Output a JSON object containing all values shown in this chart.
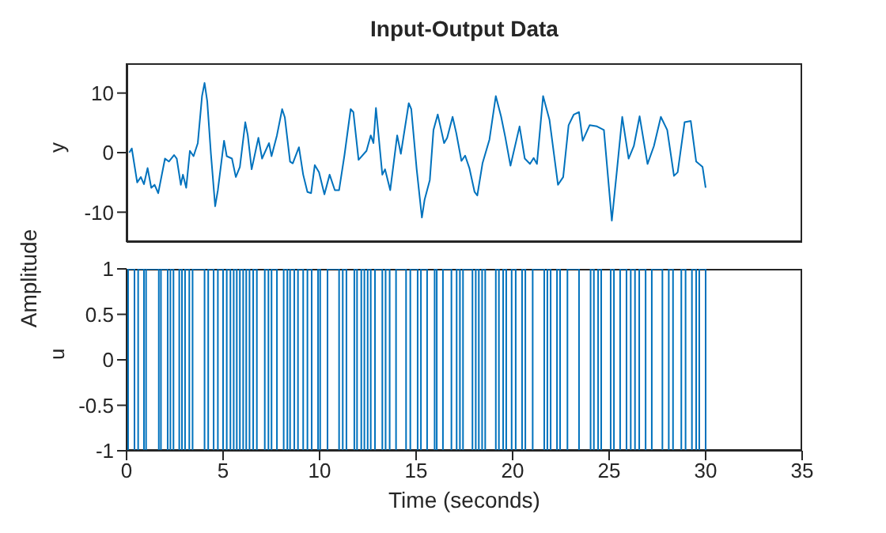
{
  "chart_data": [
    {
      "type": "line",
      "title": "Input-Output Data",
      "ylabel": "y",
      "xlim": [
        0,
        35
      ],
      "xticks": [
        0,
        5,
        10,
        15,
        20,
        25,
        30,
        35
      ],
      "ylim": [
        -15,
        15
      ],
      "yticks": [
        -10,
        0,
        10
      ],
      "tick_labels": "y",
      "series": [
        {
          "color": "#0072bd",
          "x": [
            0.14,
            0.27,
            0.55,
            0.74,
            0.9,
            1.09,
            1.28,
            1.45,
            1.64,
            1.99,
            2.19,
            2.46,
            2.6,
            2.81,
            2.92,
            3.09,
            3.28,
            3.47,
            3.69,
            3.91,
            4.04,
            4.18,
            4.37,
            4.59,
            4.73,
            5.05,
            5.19,
            5.46,
            5.66,
            5.87,
            6.15,
            6.28,
            6.48,
            6.83,
            7.02,
            7.38,
            7.51,
            7.79,
            8.06,
            8.2,
            8.47,
            8.61,
            8.93,
            9.15,
            9.37,
            9.56,
            9.75,
            9.97,
            10.25,
            10.52,
            10.79,
            11.01,
            11.29,
            11.61,
            11.75,
            12.02,
            12.43,
            12.65,
            12.79,
            12.92,
            13.25,
            13.39,
            13.66,
            14.02,
            14.21,
            14.62,
            14.75,
            15.03,
            15.3,
            15.44,
            15.71,
            15.9,
            16.12,
            16.26,
            16.45,
            16.61,
            16.89,
            17.08,
            17.35,
            17.54,
            17.76,
            18.03,
            18.17,
            18.44,
            18.8,
            19.13,
            19.4,
            19.62,
            19.89,
            20.36,
            20.63,
            20.9,
            21.09,
            21.26,
            21.58,
            21.91,
            22.35,
            22.62,
            22.9,
            23.17,
            23.44,
            23.63,
            23.99,
            24.37,
            24.73,
            25.14,
            25.41,
            25.68,
            26.01,
            26.28,
            26.58,
            26.99,
            27.32,
            27.68,
            28.01,
            28.36,
            28.55,
            28.91,
            29.23,
            29.51,
            29.84,
            30
          ],
          "values": [
            0,
            0.7,
            -5,
            -4.1,
            -5.3,
            -2.6,
            -5.9,
            -5.4,
            -6.8,
            -1,
            -1.5,
            -0.4,
            -1,
            -5.4,
            -3.7,
            -5.9,
            0.3,
            -0.6,
            1.6,
            9.5,
            11.7,
            8.6,
            -0.2,
            -9,
            -6.3,
            2,
            -0.6,
            -1,
            -4.1,
            -2.4,
            5.1,
            2.9,
            -2.8,
            2.5,
            -1,
            1.6,
            -0.6,
            2.9,
            7.3,
            5.9,
            -1.5,
            -1.8,
            0.9,
            -3.7,
            -6.6,
            -6.8,
            -2.1,
            -3.3,
            -7,
            -3.7,
            -6.3,
            -6.3,
            -0.4,
            7.3,
            6.8,
            -1.2,
            0.3,
            2.9,
            1.6,
            7.5,
            -3.7,
            -2.8,
            -6.3,
            2.9,
            -0.2,
            8.3,
            7.3,
            -2.8,
            -10.9,
            -7.9,
            -4.6,
            3.8,
            6.4,
            4.4,
            1.6,
            2.5,
            6,
            3.3,
            -1.4,
            -0.5,
            -2.6,
            -6.6,
            -7.2,
            -1.8,
            2.2,
            9.5,
            6.1,
            2.6,
            -2.2,
            4.4,
            -1,
            -1.9,
            -0.9,
            -1.9,
            9.5,
            5.5,
            -5.4,
            -4.1,
            4.6,
            6.4,
            6.8,
            2,
            4.6,
            4.4,
            3.8,
            -11.4,
            -2.8,
            6,
            -1,
            1.1,
            6.1,
            -1.9,
            1.1,
            6,
            3.8,
            -3.9,
            -3.3,
            5.1,
            5.3,
            -1.5,
            -2.4,
            -5.9
          ]
        }
      ]
    },
    {
      "type": "step",
      "xlabel": "Time (seconds)",
      "ylabel": "u",
      "xlim": [
        0,
        35
      ],
      "xticks": [
        0,
        5,
        10,
        15,
        20,
        25,
        30,
        35
      ],
      "ylim": [
        -1,
        1
      ],
      "yticks": [
        -1,
        -0.5,
        0,
        0.5,
        1
      ],
      "annotations": [
        "Amplitude"
      ],
      "series": [
        {
          "color": "#0072bd",
          "x": [
            0,
            0.08,
            0.41,
            0.6,
            0.9,
            1.01,
            1.67,
            1.78,
            2.13,
            2.27,
            2.43,
            2.73,
            2.87,
            3.03,
            3.25,
            3.42,
            4.04,
            4.23,
            4.51,
            4.73,
            5.0,
            5.19,
            5.38,
            5.55,
            5.71,
            5.87,
            6.04,
            6.2,
            6.37,
            6.56,
            6.75,
            7.16,
            7.35,
            7.51,
            7.79,
            8.14,
            8.33,
            8.47,
            8.69,
            8.88,
            9.15,
            9.37,
            9.59,
            9.92,
            10.03,
            10.41,
            11.01,
            11.2,
            11.39,
            11.8,
            11.94,
            12.16,
            12.32,
            12.49,
            12.65,
            12.87,
            13.25,
            13.42,
            13.63,
            13.96,
            14.48,
            14.7,
            15.08,
            15.25,
            15.57,
            15.96,
            16.07,
            16.39,
            16.83,
            17.1,
            17.27,
            17.43,
            17.92,
            18.09,
            18.25,
            18.42,
            18.58,
            19.13,
            19.29,
            19.51,
            19.67,
            19.95,
            20.16,
            20.49,
            20.66,
            21.04,
            21.64,
            21.8,
            21.97,
            22.3,
            22.46,
            22.84,
            23.44,
            24.04,
            24.21,
            24.43,
            24.59,
            25.08,
            25.25,
            25.57,
            25.9,
            26.12,
            26.34,
            26.56,
            26.89,
            27.21,
            27.76,
            28.09,
            28.31,
            28.74,
            28.96,
            29.29,
            29.51,
            29.67,
            30
          ],
          "values": [
            -1,
            1,
            -1,
            1,
            -1,
            1,
            -1,
            1,
            -1,
            1,
            -1,
            1,
            -1,
            1,
            -1,
            1,
            -1,
            1,
            -1,
            1,
            -1,
            1,
            -1,
            1,
            -1,
            1,
            -1,
            1,
            -1,
            1,
            -1,
            1,
            -1,
            1,
            -1,
            1,
            -1,
            1,
            -1,
            1,
            -1,
            1,
            -1,
            1,
            -1,
            1,
            -1,
            1,
            -1,
            1,
            -1,
            1,
            -1,
            1,
            -1,
            1,
            -1,
            1,
            -1,
            1,
            -1,
            1,
            -1,
            1,
            -1,
            1,
            -1,
            1,
            -1,
            1,
            -1,
            1,
            -1,
            1,
            -1,
            1,
            -1,
            1,
            -1,
            1,
            -1,
            1,
            -1,
            1,
            -1,
            1,
            -1,
            1,
            -1,
            1,
            -1,
            1,
            -1,
            1,
            -1,
            1,
            -1,
            1,
            -1,
            1,
            -1,
            1,
            -1,
            1,
            -1,
            1,
            -1,
            1,
            -1,
            1,
            -1,
            1,
            -1,
            1,
            -1
          ]
        }
      ]
    }
  ]
}
